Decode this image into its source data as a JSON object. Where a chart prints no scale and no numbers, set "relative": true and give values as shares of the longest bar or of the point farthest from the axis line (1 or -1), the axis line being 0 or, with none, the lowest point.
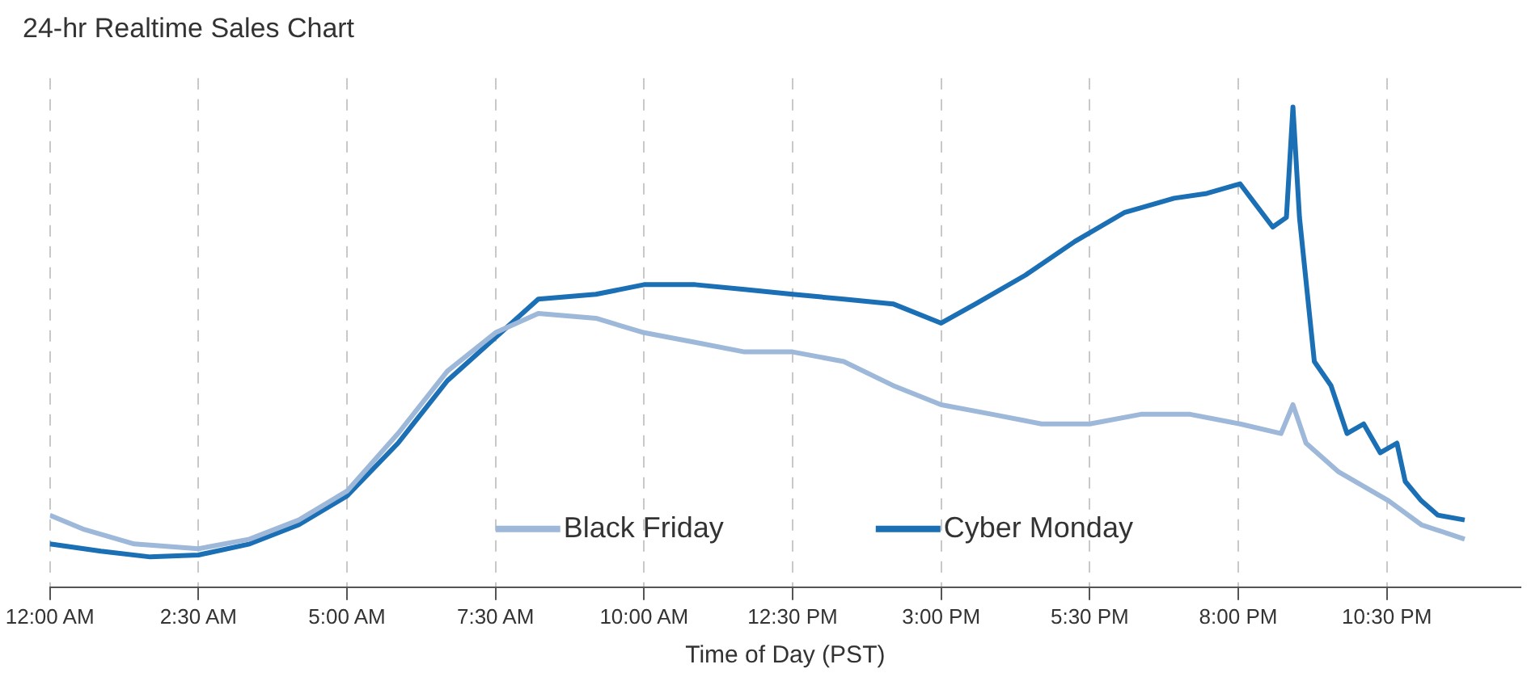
{
  "chart_data": {
    "type": "line",
    "title": "24-hr Realtime Sales Chart",
    "xlabel": "Time of Day (PST)",
    "relative": true,
    "xlim": [
      0,
      24.75
    ],
    "xticks": [
      {
        "value": 0,
        "label": "12:00 AM"
      },
      {
        "value": 2.5,
        "label": "2:30 AM"
      },
      {
        "value": 5,
        "label": "5:00 AM"
      },
      {
        "value": 7.5,
        "label": "7:30 AM"
      },
      {
        "value": 10,
        "label": "10:00 AM"
      },
      {
        "value": 12.5,
        "label": "12:30 PM"
      },
      {
        "value": 15,
        "label": "3:00 PM"
      },
      {
        "value": 17.5,
        "label": "5:30 PM"
      },
      {
        "value": 20,
        "label": "8:00 PM"
      },
      {
        "value": 22.5,
        "label": "10:30 PM"
      }
    ],
    "grid": "x",
    "legend": "bottom",
    "marker": "none",
    "line_style": "solid",
    "series": [
      {
        "name": "Black Friday",
        "color": "#9db8d9",
        "x": [
          0,
          0.58,
          1.42,
          2.5,
          3.36,
          4.19,
          5,
          5.86,
          6.69,
          7.5,
          8.22,
          9.19,
          10,
          10.86,
          11.69,
          12.5,
          13.36,
          14.19,
          15,
          15.86,
          16.69,
          17.5,
          18.36,
          19.19,
          20.03,
          20.72,
          20.92,
          21.14,
          21.69,
          22.53,
          23.08,
          23.81
        ],
        "values": [
          0.15,
          0.12,
          0.09,
          0.08,
          0.1,
          0.14,
          0.2,
          0.32,
          0.45,
          0.53,
          0.57,
          0.56,
          0.53,
          0.51,
          0.49,
          0.49,
          0.47,
          0.42,
          0.38,
          0.36,
          0.34,
          0.34,
          0.36,
          0.36,
          0.34,
          0.32,
          0.38,
          0.3,
          0.24,
          0.18,
          0.13,
          0.1
        ]
      },
      {
        "name": "Cyber Monday",
        "color": "#1a6fb5",
        "x": [
          0,
          0.86,
          1.69,
          2.5,
          3.36,
          4.19,
          5,
          5.86,
          6.69,
          7.5,
          8.22,
          9.19,
          10,
          10.86,
          11.69,
          12.5,
          13.36,
          14.19,
          15,
          15.58,
          16.42,
          17.25,
          18.08,
          18.92,
          19.47,
          20.03,
          20.58,
          20.81,
          20.92,
          21.03,
          21.28,
          21.56,
          21.83,
          22.11,
          22.39,
          22.67,
          22.81,
          23.08,
          23.36,
          23.81
        ],
        "values": [
          0.09,
          0.075,
          0.063,
          0.067,
          0.09,
          0.13,
          0.19,
          0.3,
          0.43,
          0.52,
          0.6,
          0.61,
          0.63,
          0.63,
          0.62,
          0.61,
          0.6,
          0.59,
          0.55,
          0.59,
          0.65,
          0.72,
          0.78,
          0.81,
          0.82,
          0.84,
          0.75,
          0.77,
          1,
          0.77,
          0.47,
          0.42,
          0.32,
          0.34,
          0.28,
          0.3,
          0.22,
          0.18,
          0.15,
          0.14
        ]
      }
    ]
  }
}
